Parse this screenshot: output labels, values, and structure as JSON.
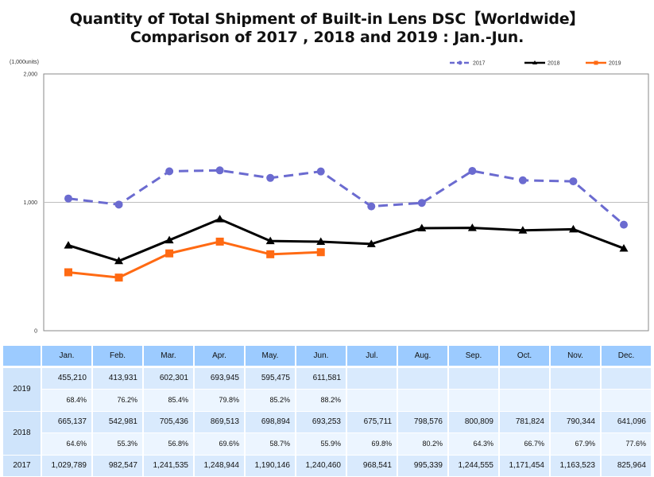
{
  "title_line1": "Quantity of Total Shipment of Built-in Lens DSC【Worldwide】",
  "title_line2": "Comparison of 2017 , 2018 and 2019 : Jan.-Jun.",
  "chart_data": {
    "type": "line",
    "title": "Quantity of Total Shipment of Built-in Lens DSC【Worldwide】 Comparison of 2017 , 2018 and 2019 : Jan.-Jun.",
    "ylabel": "(1,000units)",
    "xlabel": "",
    "ylim": [
      0,
      2000
    ],
    "yticks": [
      0,
      1000,
      2000
    ],
    "ytick_labels": [
      "0",
      "1,000",
      "2,000"
    ],
    "grid": "horizontal at 1,000",
    "legend_position": "top-right",
    "categories": [
      "Jan.",
      "Feb.",
      "Mar.",
      "Apr.",
      "May.",
      "Jun.",
      "Jul.",
      "Aug.",
      "Sep.",
      "Oct.",
      "Nov.",
      "Dec."
    ],
    "series": [
      {
        "name": "2017",
        "color": "#6b6bd0",
        "style": "dashed",
        "marker": "circle",
        "values": [
          1029.789,
          982.547,
          1241.535,
          1248.944,
          1190.146,
          1240.46,
          968.541,
          995.339,
          1244.555,
          1171.454,
          1163.523,
          825.964
        ]
      },
      {
        "name": "2018",
        "color": "#000000",
        "style": "solid",
        "marker": "triangle",
        "values": [
          665.137,
          542.981,
          705.436,
          869.513,
          698.894,
          693.253,
          675.711,
          798.576,
          800.809,
          781.824,
          790.344,
          641.096
        ]
      },
      {
        "name": "2019",
        "color": "#ff6a13",
        "style": "solid",
        "marker": "square",
        "values": [
          455.21,
          413.931,
          602.301,
          693.945,
          595.475,
          611.581
        ]
      }
    ]
  },
  "table": {
    "corner": "",
    "months": [
      "Jan.",
      "Feb.",
      "Mar.",
      "Apr.",
      "May.",
      "Jun.",
      "Jul.",
      "Aug.",
      "Sep.",
      "Oct.",
      "Nov.",
      "Dec."
    ],
    "rows": [
      {
        "year": "2019",
        "units": [
          "455,210",
          "413,931",
          "602,301",
          "693,945",
          "595,475",
          "611,581",
          "",
          "",
          "",
          "",
          "",
          ""
        ],
        "pct": [
          "68.4%",
          "76.2%",
          "85.4%",
          "79.8%",
          "85.2%",
          "88.2%",
          "",
          "",
          "",
          "",
          "",
          ""
        ]
      },
      {
        "year": "2018",
        "units": [
          "665,137",
          "542,981",
          "705,436",
          "869,513",
          "698,894",
          "693,253",
          "675,711",
          "798,576",
          "800,809",
          "781,824",
          "790,344",
          "641,096"
        ],
        "pct": [
          "64.6%",
          "55.3%",
          "56.8%",
          "69.6%",
          "58.7%",
          "55.9%",
          "69.8%",
          "80.2%",
          "64.3%",
          "66.7%",
          "67.9%",
          "77.6%"
        ]
      },
      {
        "year": "2017",
        "units": [
          "1,029,789",
          "982,547",
          "1,241,535",
          "1,248,944",
          "1,190,146",
          "1,240,460",
          "968,541",
          "995,339",
          "1,244,555",
          "1,171,454",
          "1,163,523",
          "825,964"
        ]
      }
    ]
  }
}
